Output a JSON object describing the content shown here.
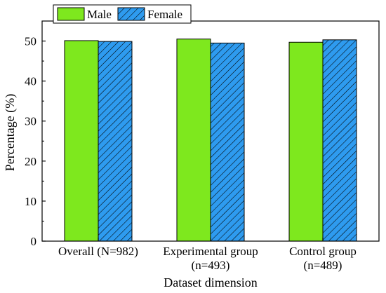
{
  "chart_data": {
    "type": "bar",
    "categories": [
      "Overall (N=982)",
      "Experimental group (n=493)",
      "Control group (n=489)"
    ],
    "category_lines": [
      [
        "Overall (N=982)"
      ],
      [
        "Experimental group",
        "(n=493)"
      ],
      [
        "Control group",
        "(n=489)"
      ]
    ],
    "series": [
      {
        "name": "Male",
        "values": [
          50.1,
          50.5,
          49.7
        ],
        "color": "#7ee81e",
        "pattern": "solid"
      },
      {
        "name": "Female",
        "values": [
          49.9,
          49.5,
          50.3
        ],
        "color": "#2e9bef",
        "pattern": "diagonal-hatch"
      }
    ],
    "xlabel": "Dataset dimension",
    "ylabel": "Percentage (%)",
    "ylim": [
      0,
      55
    ],
    "yticks": [
      0,
      10,
      20,
      30,
      40,
      50
    ],
    "legend_position": "top-left",
    "grid": false
  }
}
